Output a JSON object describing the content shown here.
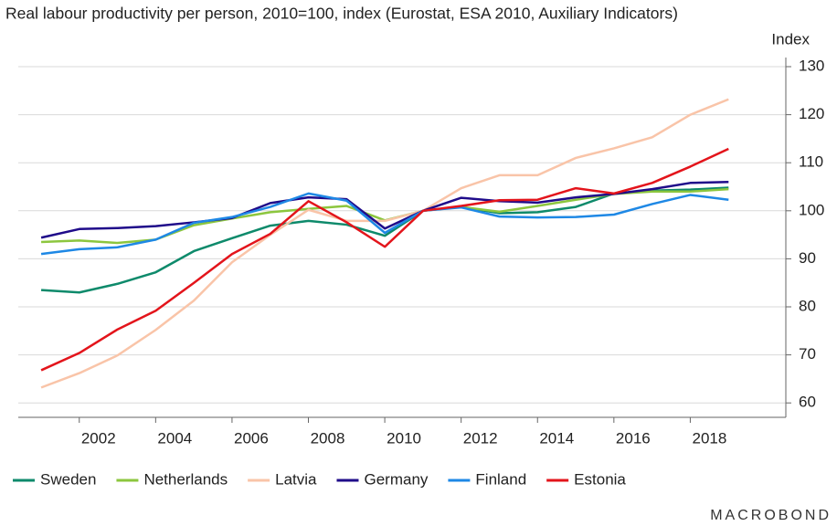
{
  "chart_data": {
    "type": "line",
    "title": "Real labour productivity per person, 2010=100, index (Eurostat, ESA 2010, Auxiliary Indicators)",
    "y_label": "Index",
    "source": "MACROBOND",
    "x": [
      2000.5,
      2001.5,
      2002.5,
      2003.5,
      2004.5,
      2005.5,
      2006.5,
      2007.5,
      2008.5,
      2009.5,
      2010.5,
      2011.5,
      2012.5,
      2013.5,
      2014.5,
      2015.5,
      2016.5,
      2017.5,
      2018.5
    ],
    "xlim": [
      1999.9,
      2020.0
    ],
    "xticks": [
      2002,
      2004,
      2006,
      2008,
      2010,
      2012,
      2014,
      2016,
      2018
    ],
    "ylim": [
      57,
      130
    ],
    "yticks": [
      60,
      70,
      80,
      90,
      100,
      110,
      120,
      130
    ],
    "grid": true,
    "legend": "bottom",
    "series": [
      {
        "name": "Sweden",
        "color": "#0e8a6b",
        "values": [
          83.5,
          83,
          84.8,
          87.2,
          91.6,
          94.3,
          96.9,
          97.9,
          97.1,
          94.8,
          100,
          100.8,
          99.5,
          99.7,
          100.8,
          103.6,
          104.2,
          104.4,
          104.8
        ]
      },
      {
        "name": "Netherlands",
        "color": "#8cc63e",
        "values": [
          93.5,
          93.8,
          93.3,
          94,
          97,
          98.4,
          99.7,
          100.4,
          101,
          98,
          100,
          100.8,
          99.8,
          101,
          102.3,
          103.5,
          104,
          104,
          104.5
        ]
      },
      {
        "name": "Latvia",
        "color": "#f9c4a8",
        "values": [
          63.2,
          66.2,
          69.9,
          75.2,
          81.3,
          89.3,
          95,
          100.2,
          97.9,
          97.9,
          100,
          104.7,
          107.4,
          107.4,
          111,
          113,
          115.3,
          120,
          123.2
        ]
      },
      {
        "name": "Germany",
        "color": "#1f0b8a",
        "values": [
          94.4,
          96.2,
          96.4,
          96.8,
          97.6,
          98.5,
          101.6,
          102.8,
          102.4,
          96.3,
          100,
          102.7,
          102,
          101.7,
          102.8,
          103.5,
          104.5,
          105.8,
          106
        ]
      },
      {
        "name": "Finland",
        "color": "#1e88e5",
        "values": [
          91,
          92,
          92.4,
          94,
          97.5,
          98.7,
          100.8,
          103.6,
          102.1,
          95.4,
          100,
          100.7,
          98.8,
          98.6,
          98.7,
          99.2,
          101.4,
          103.3,
          102.3
        ]
      },
      {
        "name": "Estonia",
        "color": "#e3141b",
        "values": [
          66.8,
          70.4,
          75.3,
          79.2,
          85,
          91,
          95.2,
          102,
          97.6,
          92.5,
          100,
          101,
          102.2,
          102.3,
          104.7,
          103.6,
          105.8,
          109.2,
          112.9
        ]
      }
    ]
  }
}
